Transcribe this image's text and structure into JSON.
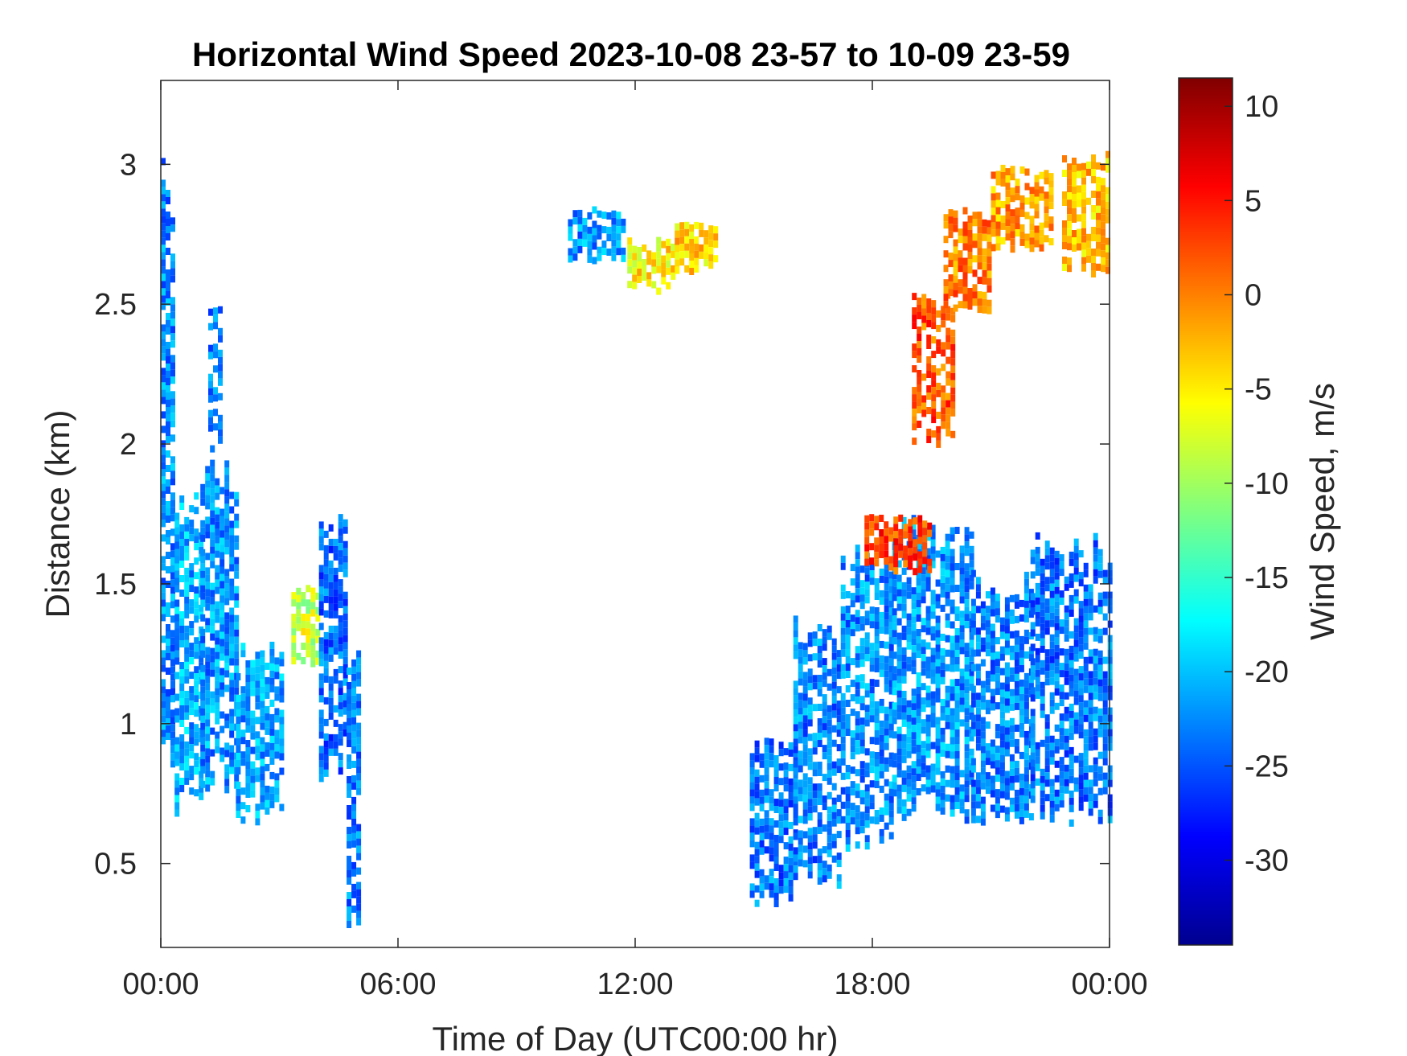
{
  "chart_data": {
    "type": "heatmap",
    "title": "Horizontal Wind Speed 2023-10-08 23-57 to 10-09 23-59",
    "xlabel": "Time of Day (UTC00:00 hr)",
    "ylabel": "Distance (km)",
    "colorbar_label": "Wind Speed, m/s",
    "colormap": "jet",
    "xlim_hours": [
      0,
      24
    ],
    "ylim_km": [
      0.2,
      3.3
    ],
    "clim": [
      -34.5,
      11.5
    ],
    "x_ticks": [
      {
        "value": 0,
        "label": "00:00"
      },
      {
        "value": 6,
        "label": "06:00"
      },
      {
        "value": 12,
        "label": "12:00"
      },
      {
        "value": 18,
        "label": "18:00"
      },
      {
        "value": 24,
        "label": "00:00"
      }
    ],
    "y_ticks": [
      {
        "value": 0.5,
        "label": "0.5"
      },
      {
        "value": 1,
        "label": "1"
      },
      {
        "value": 1.5,
        "label": "1.5"
      },
      {
        "value": 2,
        "label": "2"
      },
      {
        "value": 2.5,
        "label": "2.5"
      },
      {
        "value": 3,
        "label": "3"
      }
    ],
    "colorbar_ticks": [
      {
        "value": 10,
        "label": "10"
      },
      {
        "value": 5,
        "label": "5"
      },
      {
        "value": 0,
        "label": "0"
      },
      {
        "value": -5,
        "label": "-5"
      },
      {
        "value": -10,
        "label": "-10"
      },
      {
        "value": -15,
        "label": "-15"
      },
      {
        "value": -20,
        "label": "-20"
      },
      {
        "value": -25,
        "label": "-25"
      },
      {
        "value": -30,
        "label": "-30"
      }
    ],
    "regions": [
      {
        "t0": 0.0,
        "t1": 0.35,
        "z0": 0.7,
        "z1": 3.05,
        "v": -22.5
      },
      {
        "t0": 0.35,
        "t1": 1.0,
        "z0": 0.65,
        "z1": 1.85,
        "v": -21.0
      },
      {
        "t0": 1.0,
        "t1": 1.9,
        "z0": 0.75,
        "z1": 2.0,
        "v": -22.0
      },
      {
        "t0": 1.2,
        "t1": 1.5,
        "z0": 2.0,
        "z1": 2.55,
        "v": -23.5
      },
      {
        "t0": 1.9,
        "t1": 3.0,
        "z0": 0.65,
        "z1": 1.3,
        "v": -21.5
      },
      {
        "t0": 3.3,
        "t1": 4.0,
        "z0": 1.2,
        "z1": 1.5,
        "v": -8.0
      },
      {
        "t0": 4.0,
        "t1": 4.7,
        "z0": 0.8,
        "z1": 1.75,
        "v": -24.0
      },
      {
        "t0": 4.7,
        "t1": 5.05,
        "z0": 0.2,
        "z1": 1.3,
        "v": -23.0
      },
      {
        "t0": 10.3,
        "t1": 11.7,
        "z0": 2.65,
        "z1": 2.85,
        "v": -22.0
      },
      {
        "t0": 11.8,
        "t1": 13.0,
        "z0": 2.55,
        "z1": 2.75,
        "v": -5.0
      },
      {
        "t0": 13.0,
        "t1": 14.0,
        "z0": 2.62,
        "z1": 2.8,
        "v": -4.0
      },
      {
        "t0": 14.9,
        "t1": 16.0,
        "z0": 0.35,
        "z1": 0.95,
        "v": -23.5
      },
      {
        "t0": 16.0,
        "t1": 17.2,
        "z0": 0.4,
        "z1": 1.4,
        "v": -23.0
      },
      {
        "t0": 17.2,
        "t1": 18.5,
        "z0": 0.55,
        "z1": 1.65,
        "v": -22.5
      },
      {
        "t0": 18.5,
        "t1": 20.5,
        "z0": 0.65,
        "z1": 1.75,
        "v": -22.0
      },
      {
        "t0": 20.5,
        "t1": 22.0,
        "z0": 0.6,
        "z1": 1.55,
        "v": -23.0
      },
      {
        "t0": 22.0,
        "t1": 24.0,
        "z0": 0.65,
        "z1": 1.7,
        "v": -23.5
      },
      {
        "t0": 17.8,
        "t1": 19.5,
        "z0": 1.55,
        "z1": 1.75,
        "v": 3.0
      },
      {
        "t0": 19.0,
        "t1": 20.0,
        "z0": 2.0,
        "z1": 2.55,
        "v": 2.0
      },
      {
        "t0": 19.8,
        "t1": 21.0,
        "z0": 2.45,
        "z1": 2.85,
        "v": 0.0
      },
      {
        "t0": 21.0,
        "t1": 22.5,
        "z0": 2.7,
        "z1": 3.0,
        "v": -1.5
      },
      {
        "t0": 22.8,
        "t1": 24.0,
        "z0": 2.6,
        "z1": 3.05,
        "v": -3.0
      }
    ]
  }
}
